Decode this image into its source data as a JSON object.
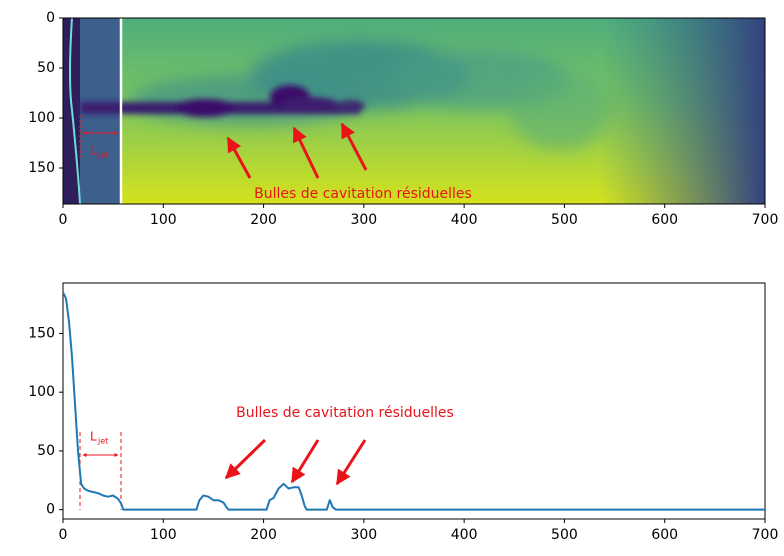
{
  "chart_data": [
    {
      "type": "image",
      "xlim": [
        0,
        700
      ],
      "ylim": [
        0,
        186
      ],
      "y_inverted": true,
      "xticks": [
        0,
        100,
        200,
        300,
        400,
        500,
        600,
        700
      ],
      "yticks": [
        0,
        50,
        100,
        150
      ],
      "annotation": "Bulles de cavitation résiduelles",
      "jet_label": "L",
      "jet_label_sub": "jet"
    },
    {
      "type": "line",
      "color": "#1f77b4",
      "xlim": [
        0,
        700
      ],
      "ylim": [
        -8,
        193
      ],
      "xticks": [
        0,
        100,
        200,
        300,
        400,
        500,
        600,
        700
      ],
      "yticks": [
        0,
        50,
        100,
        150
      ],
      "x": [
        0,
        3,
        6,
        9,
        12,
        15,
        18,
        21,
        25,
        30,
        35,
        40,
        45,
        50,
        55,
        58,
        60,
        133,
        136,
        140,
        145,
        150,
        155,
        160,
        163,
        165,
        203,
        206,
        210,
        215,
        220,
        225,
        230,
        235,
        238,
        241,
        243,
        263,
        266,
        269,
        272,
        700
      ],
      "values": [
        185,
        180,
        160,
        130,
        90,
        50,
        22,
        18,
        16,
        15,
        14,
        12,
        11,
        12,
        9,
        5,
        0,
        0,
        8,
        12,
        11,
        8,
        8,
        6,
        2,
        0,
        0,
        8,
        10,
        18,
        22,
        18,
        19,
        19,
        12,
        3,
        0,
        0,
        8,
        2,
        0,
        0
      ],
      "annotation": "Bulles de cavitation résiduelles",
      "jet_label": "L",
      "jet_label_sub": "jet"
    }
  ]
}
